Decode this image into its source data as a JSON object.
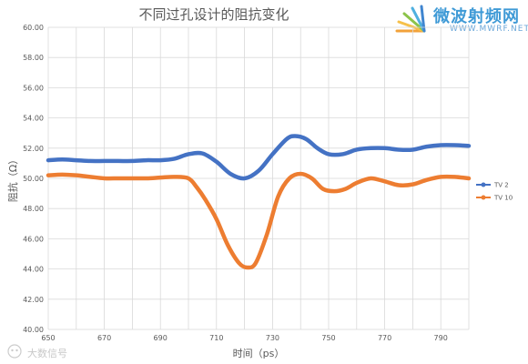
{
  "chart_data": {
    "type": "line",
    "title": "不同过孔设计的阻抗变化",
    "xlabel": "时间（ps）",
    "ylabel": "阻抗（Ω）",
    "xlim": [
      650,
      800
    ],
    "ylim": [
      40,
      60
    ],
    "x_ticks": [
      "650",
      "670",
      "690",
      "710",
      "730",
      "750",
      "770",
      "790"
    ],
    "y_ticks": [
      "40.00",
      "42.00",
      "44.00",
      "46.00",
      "48.00",
      "50.00",
      "52.00",
      "54.00",
      "56.00",
      "58.00",
      "60.00"
    ],
    "grid": true,
    "legend_position": "right",
    "series": [
      {
        "name": "TV 2",
        "color": "#4472c4",
        "x": [
          650,
          655,
          660,
          665,
          670,
          675,
          680,
          685,
          690,
          695,
          700,
          705,
          710,
          715,
          720,
          725,
          730,
          735,
          738,
          742,
          746,
          750,
          755,
          760,
          765,
          770,
          775,
          780,
          785,
          790,
          795,
          800
        ],
        "y": [
          51.2,
          51.25,
          51.2,
          51.15,
          51.15,
          51.15,
          51.15,
          51.2,
          51.2,
          51.3,
          51.6,
          51.65,
          51.1,
          50.3,
          50.0,
          50.5,
          51.6,
          52.6,
          52.8,
          52.6,
          52.0,
          51.6,
          51.6,
          51.9,
          52.0,
          52.0,
          51.9,
          51.9,
          52.1,
          52.2,
          52.2,
          52.15
        ]
      },
      {
        "name": "TV 10",
        "color": "#ed7d31",
        "x": [
          650,
          655,
          660,
          665,
          670,
          675,
          680,
          685,
          690,
          695,
          700,
          703,
          706,
          710,
          714,
          718,
          721,
          724,
          728,
          732,
          736,
          740,
          744,
          748,
          752,
          756,
          760,
          765,
          770,
          775,
          780,
          785,
          790,
          795,
          800
        ],
        "y": [
          50.2,
          50.25,
          50.2,
          50.1,
          50.0,
          50.0,
          50.0,
          50.0,
          50.05,
          50.1,
          50.0,
          49.4,
          48.6,
          47.3,
          45.6,
          44.4,
          44.1,
          44.4,
          46.3,
          48.8,
          50.0,
          50.3,
          50.0,
          49.3,
          49.15,
          49.3,
          49.7,
          50.0,
          49.8,
          49.55,
          49.6,
          49.9,
          50.1,
          50.1,
          50.0
        ]
      }
    ]
  },
  "logo": {
    "name": "微波射频网",
    "url": "WWW.MWRF.NET"
  },
  "watermark": {
    "text": "大数信号"
  }
}
